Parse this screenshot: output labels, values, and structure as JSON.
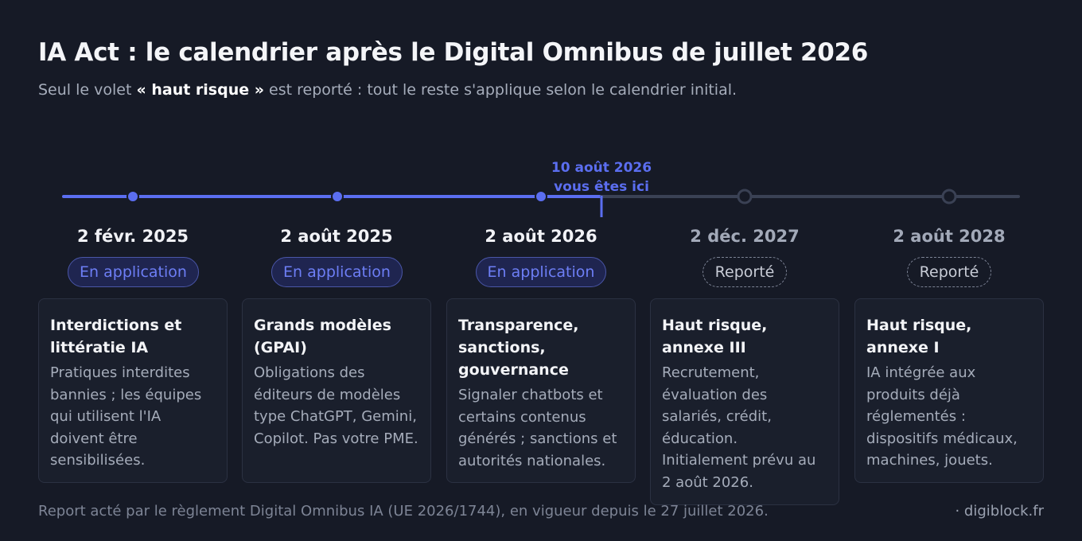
{
  "header": {
    "title": "IA Act : le calendrier après le Digital Omnibus de juillet 2026",
    "subtitle_before": "Seul le volet ",
    "subtitle_strong": "« haut risque »",
    "subtitle_after": " est reporté : tout le reste s'applique selon le calendrier initial."
  },
  "today_marker": {
    "line1": "10 août 2026",
    "line2": "vous êtes ici"
  },
  "colors": {
    "accent": "#5b6ef0",
    "pending": "#3a4154",
    "background": "#161a26"
  },
  "milestones": [
    {
      "date": "2 févr. 2025",
      "status": "En application",
      "state": "active",
      "title": "Interdictions et littératie IA",
      "text": "Pratiques interdites bannies ; les équipes qui utilisent l'IA doivent être sensibilisées."
    },
    {
      "date": "2 août 2025",
      "status": "En application",
      "state": "active",
      "title": "Grands modèles (GPAI)",
      "text": "Obligations des éditeurs de modèles type ChatGPT, Gemini, Copilot. Pas votre PME."
    },
    {
      "date": "2 août 2026",
      "status": "En application",
      "state": "active",
      "title": "Transparence, sanctions, gouvernance",
      "text": "Signaler chatbots et certains contenus générés ; sanctions et autorités nationales."
    },
    {
      "date": "2 déc. 2027",
      "status": "Reporté",
      "state": "postponed",
      "title": "Haut risque, annexe III",
      "text": "Recrutement, évaluation des salariés, crédit, éducation. Initialement prévu au 2 août 2026."
    },
    {
      "date": "2 août 2028",
      "status": "Reporté",
      "state": "postponed",
      "title": "Haut risque, annexe I",
      "text": "IA intégrée aux produits déjà réglementés : dispositifs médicaux, machines, jouets."
    }
  ],
  "footer": {
    "note": "Report acté par le règlement Digital Omnibus IA (UE 2026/1744), en vigueur depuis le 27 juillet 2026.",
    "source": "· digiblock.fr"
  }
}
